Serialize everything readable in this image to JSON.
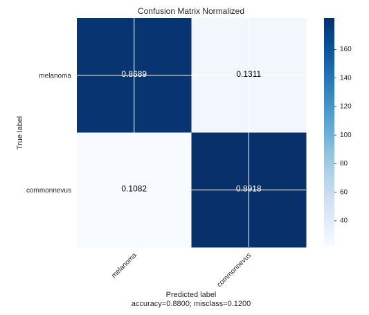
{
  "chart_data": {
    "type": "heatmap",
    "title": "Confusion Matrix Normalized",
    "xlabel": "Predicted label",
    "xlabel_sub": "accuracy=0.8800; misclass=0.1200",
    "ylabel": "True label",
    "row_labels": [
      "melanoma",
      "commonnevus"
    ],
    "col_labels": [
      "melanoma",
      "commonnevus"
    ],
    "values": [
      [
        0.8689,
        0.1311
      ],
      [
        0.1082,
        0.8918
      ]
    ],
    "cell_labels": [
      [
        "0.8689",
        "0.1311"
      ],
      [
        "0.1082",
        "0.8918"
      ]
    ],
    "color_values": [
      [
        179,
        27
      ],
      [
        22,
        182
      ]
    ],
    "colormap": "Blues",
    "colorbar": {
      "min": 22,
      "max": 182,
      "ticks": [
        40,
        60,
        80,
        100,
        120,
        140,
        160
      ]
    },
    "grid": true,
    "low_color": "#f7fbff",
    "high_color": "#08306b"
  }
}
